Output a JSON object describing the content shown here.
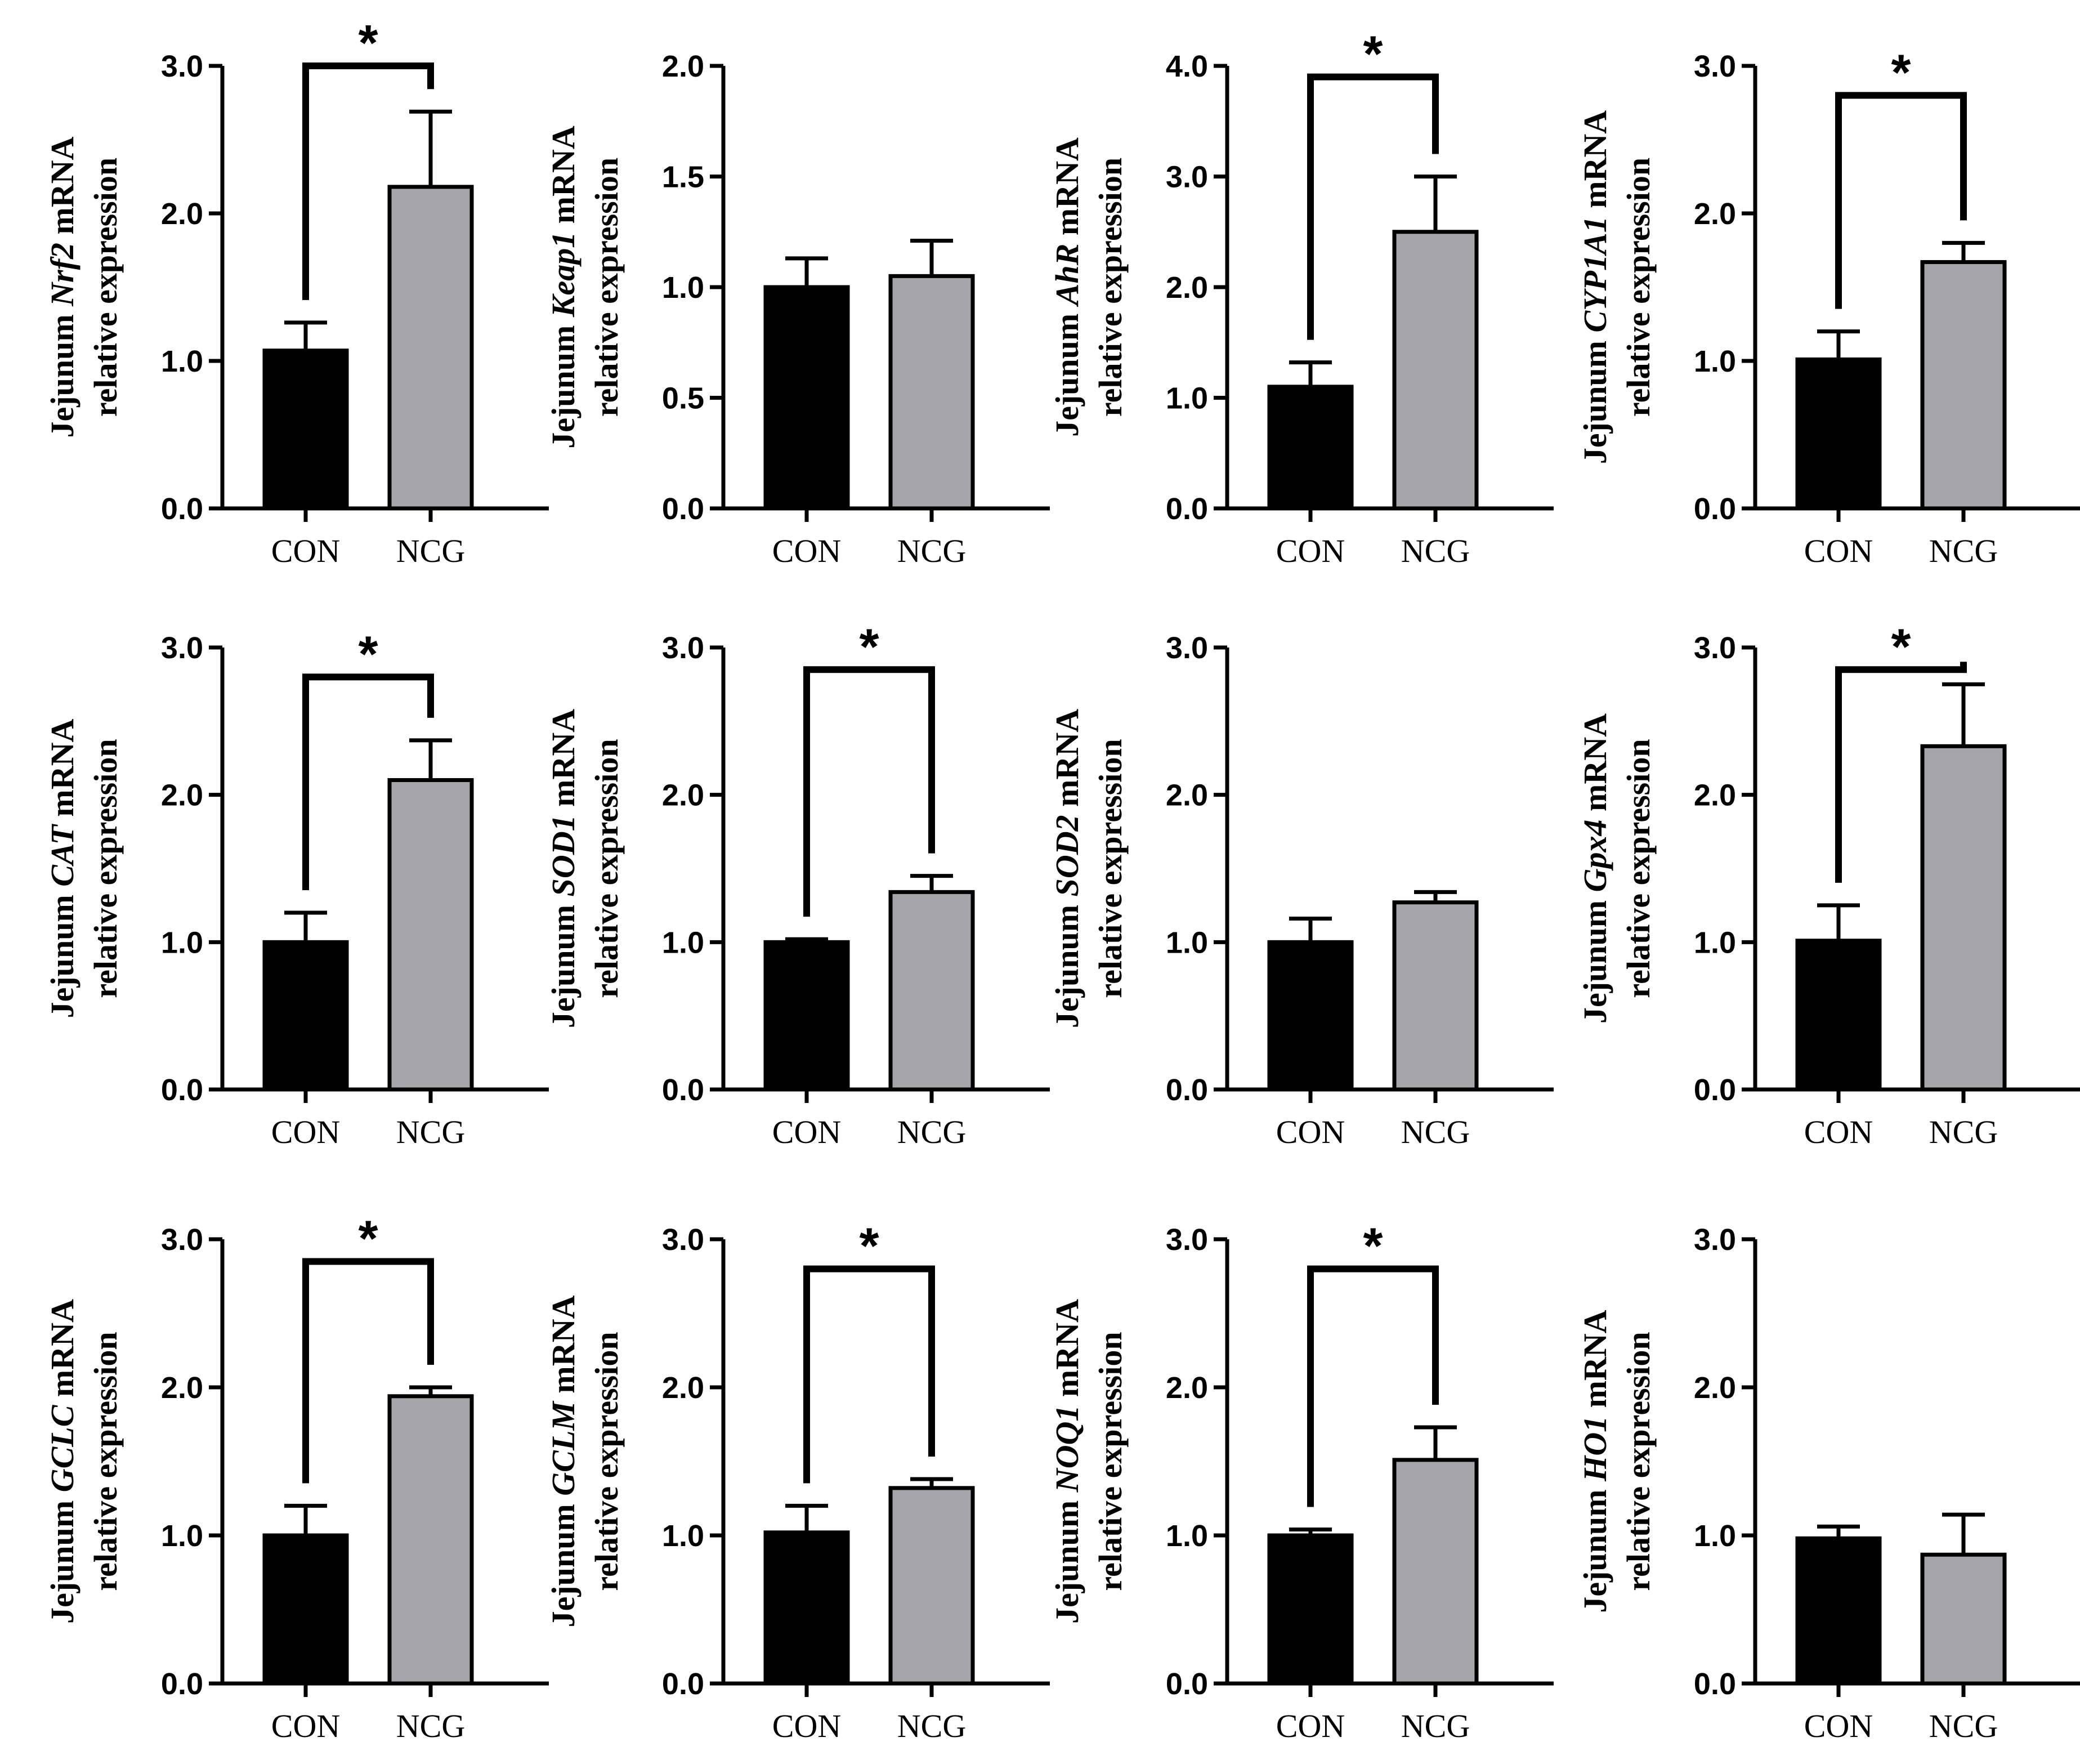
{
  "figure": {
    "categories": [
      "CON",
      "NCG"
    ],
    "colors": {
      "CON": "#000000",
      "NCG": "#a5a4aa"
    }
  },
  "chart_data": [
    {
      "type": "bar",
      "prefix": "Jejunum ",
      "gene": "Nrf2",
      "suffix": " mRNA",
      "ylabel2": "relative expression",
      "categories": [
        "CON",
        "NCG"
      ],
      "values": [
        1.07,
        2.18
      ],
      "errors": [
        0.19,
        0.51
      ],
      "ylim": [
        0,
        3.0
      ],
      "ticks": [
        0.0,
        1.0,
        2.0,
        3.0
      ],
      "tick_labels": [
        "0.0",
        "1.0",
        "2.0",
        "3.0"
      ],
      "significance": "*",
      "sig_level": 3.0
    },
    {
      "type": "bar",
      "prefix": "Jejunum ",
      "gene": "Keap1",
      "suffix": " mRNA",
      "ylabel2": "relative expression",
      "categories": [
        "CON",
        "NCG"
      ],
      "values": [
        1.0,
        1.05
      ],
      "errors": [
        0.13,
        0.16
      ],
      "ylim": [
        0,
        2.0
      ],
      "ticks": [
        0.0,
        0.5,
        1.0,
        1.5,
        2.0
      ],
      "tick_labels": [
        "0.0",
        "0.5",
        "1.0",
        "1.5",
        "2.0"
      ],
      "significance": "",
      "sig_level": 0
    },
    {
      "type": "bar",
      "prefix": "Jejunum ",
      "gene": "AhR",
      "suffix": " mRNA",
      "ylabel2": "relative expression",
      "categories": [
        "CON",
        "NCG"
      ],
      "values": [
        1.1,
        2.5
      ],
      "errors": [
        0.22,
        0.5
      ],
      "ylim": [
        0,
        4.0
      ],
      "ticks": [
        0.0,
        1.0,
        2.0,
        3.0,
        4.0
      ],
      "tick_labels": [
        "0.0",
        "1.0",
        "2.0",
        "3.0",
        "4.0"
      ],
      "significance": "*",
      "sig_level": 3.9
    },
    {
      "type": "bar",
      "prefix": "Jejunum ",
      "gene": "CYP1A1",
      "suffix": " mRNA",
      "ylabel2": "relative expression",
      "categories": [
        "CON",
        "NCG"
      ],
      "values": [
        1.01,
        1.67
      ],
      "errors": [
        0.19,
        0.13
      ],
      "ylim": [
        0,
        3.0
      ],
      "ticks": [
        0.0,
        1.0,
        2.0,
        3.0
      ],
      "tick_labels": [
        "0.0",
        "1.0",
        "2.0",
        "3.0"
      ],
      "significance": "*",
      "sig_level": 2.8
    },
    {
      "type": "bar",
      "prefix": "Jejunum ",
      "gene": "CAT",
      "suffix": " mRNA",
      "ylabel2": "relative expression",
      "categories": [
        "CON",
        "NCG"
      ],
      "values": [
        1.0,
        2.1
      ],
      "errors": [
        0.2,
        0.27
      ],
      "ylim": [
        0,
        3.0
      ],
      "ticks": [
        0.0,
        1.0,
        2.0,
        3.0
      ],
      "tick_labels": [
        "0.0",
        "1.0",
        "2.0",
        "3.0"
      ],
      "significance": "*",
      "sig_level": 2.8
    },
    {
      "type": "bar",
      "prefix": "Jejunum ",
      "gene": "SOD1",
      "suffix": " mRNA",
      "ylabel2": "relative expression",
      "categories": [
        "CON",
        "NCG"
      ],
      "values": [
        1.0,
        1.34
      ],
      "errors": [
        0.02,
        0.11
      ],
      "ylim": [
        0,
        3.0
      ],
      "ticks": [
        0.0,
        1.0,
        2.0,
        3.0
      ],
      "tick_labels": [
        "0.0",
        "1.0",
        "2.0",
        "3.0"
      ],
      "significance": "*",
      "sig_level": 2.85
    },
    {
      "type": "bar",
      "prefix": "Jejunum ",
      "gene": "SOD2",
      "suffix": " mRNA",
      "ylabel2": "relative expression",
      "categories": [
        "CON",
        "NCG"
      ],
      "values": [
        1.0,
        1.27
      ],
      "errors": [
        0.16,
        0.07
      ],
      "ylim": [
        0,
        3.0
      ],
      "ticks": [
        0.0,
        1.0,
        2.0,
        3.0
      ],
      "tick_labels": [
        "0.0",
        "1.0",
        "2.0",
        "3.0"
      ],
      "significance": "",
      "sig_level": 0
    },
    {
      "type": "bar",
      "prefix": "Jejunum ",
      "gene": "Gpx4",
      "suffix": " mRNA",
      "ylabel2": "relative expression",
      "categories": [
        "CON",
        "NCG"
      ],
      "values": [
        1.01,
        2.33
      ],
      "errors": [
        0.24,
        0.42
      ],
      "ylim": [
        0,
        3.0
      ],
      "ticks": [
        0.0,
        1.0,
        2.0,
        3.0
      ],
      "tick_labels": [
        "0.0",
        "1.0",
        "2.0",
        "3.0"
      ],
      "significance": "*",
      "sig_level": 2.85
    },
    {
      "type": "bar",
      "prefix": "Jejunum ",
      "gene": "GCLC",
      "suffix": " mRNA",
      "ylabel2": "relative expression",
      "categories": [
        "CON",
        "NCG"
      ],
      "values": [
        1.0,
        1.94
      ],
      "errors": [
        0.2,
        0.06
      ],
      "ylim": [
        0,
        3.0
      ],
      "ticks": [
        0.0,
        1.0,
        2.0,
        3.0
      ],
      "tick_labels": [
        "0.0",
        "1.0",
        "2.0",
        "3.0"
      ],
      "significance": "*",
      "sig_level": 2.85
    },
    {
      "type": "bar",
      "prefix": "Jejunum ",
      "gene": "GCLM",
      "suffix": " mRNA",
      "ylabel2": "relative expression",
      "categories": [
        "CON",
        "NCG"
      ],
      "values": [
        1.02,
        1.32
      ],
      "errors": [
        0.18,
        0.06
      ],
      "ylim": [
        0,
        3.0
      ],
      "ticks": [
        0.0,
        1.0,
        2.0,
        3.0
      ],
      "tick_labels": [
        "0.0",
        "1.0",
        "2.0",
        "3.0"
      ],
      "significance": "*",
      "sig_level": 2.8
    },
    {
      "type": "bar",
      "prefix": "Jejunum ",
      "gene": "NOQ1",
      "suffix": " mRNA",
      "ylabel2": "relative expression",
      "categories": [
        "CON",
        "NCG"
      ],
      "values": [
        1.0,
        1.51
      ],
      "errors": [
        0.04,
        0.22
      ],
      "ylim": [
        0,
        3.0
      ],
      "ticks": [
        0.0,
        1.0,
        2.0,
        3.0
      ],
      "tick_labels": [
        "0.0",
        "1.0",
        "2.0",
        "3.0"
      ],
      "significance": "*",
      "sig_level": 2.8
    },
    {
      "type": "bar",
      "prefix": "Jejunum ",
      "gene": "HO1",
      "suffix": " mRNA",
      "ylabel2": "relative expression",
      "categories": [
        "CON",
        "NCG"
      ],
      "values": [
        0.98,
        0.87
      ],
      "errors": [
        0.08,
        0.27
      ],
      "ylim": [
        0,
        3.0
      ],
      "ticks": [
        0.0,
        1.0,
        2.0,
        3.0
      ],
      "tick_labels": [
        "0.0",
        "1.0",
        "2.0",
        "3.0"
      ],
      "significance": "",
      "sig_level": 0
    }
  ]
}
